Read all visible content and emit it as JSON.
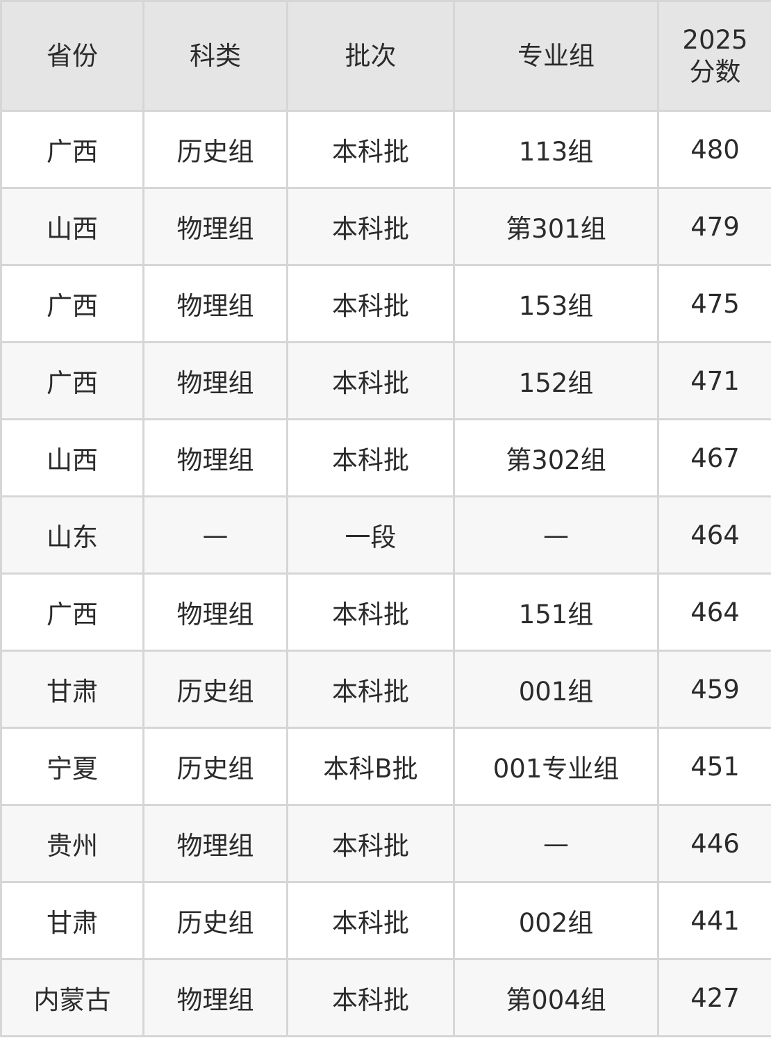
{
  "table": {
    "headers": [
      "省份",
      "科类",
      "批次",
      "专业组",
      "2025\n分数"
    ],
    "header_score_line1": "2025",
    "header_score_line2": "分数",
    "rows": [
      [
        "广西",
        "历史组",
        "本科批",
        "113组",
        "480"
      ],
      [
        "山西",
        "物理组",
        "本科批",
        "第301组",
        "479"
      ],
      [
        "广西",
        "物理组",
        "本科批",
        "153组",
        "475"
      ],
      [
        "广西",
        "物理组",
        "本科批",
        "152组",
        "471"
      ],
      [
        "山西",
        "物理组",
        "本科批",
        "第302组",
        "467"
      ],
      [
        "山东",
        "—",
        "一段",
        "—",
        "464"
      ],
      [
        "广西",
        "物理组",
        "本科批",
        "151组",
        "464"
      ],
      [
        "甘肃",
        "历史组",
        "本科批",
        "001组",
        "459"
      ],
      [
        "宁夏",
        "历史组",
        "本科B批",
        "001专业组",
        "451"
      ],
      [
        "贵州",
        "物理组",
        "本科批",
        "—",
        "446"
      ],
      [
        "甘肃",
        "历史组",
        "本科批",
        "002组",
        "441"
      ],
      [
        "内蒙古",
        "物理组",
        "本科批",
        "第004组",
        "427"
      ]
    ]
  }
}
